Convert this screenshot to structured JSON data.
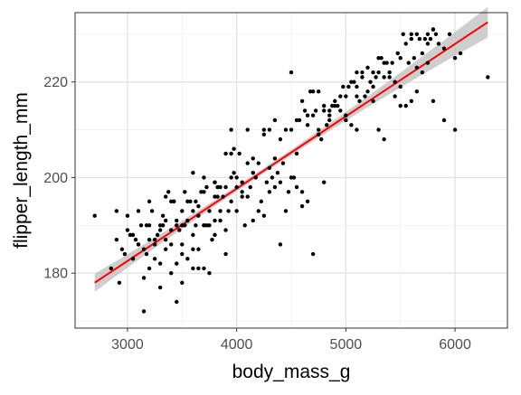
{
  "chart_data": {
    "type": "scatter",
    "title": "",
    "xlabel": "body_mass_g",
    "ylabel": "flipper_length_mm",
    "xlim": [
      2520,
      6480
    ],
    "ylim": [
      168.5,
      234.5
    ],
    "x_ticks": [
      3000,
      4000,
      5000,
      6000
    ],
    "x_tick_labels": [
      "3000",
      "4000",
      "5000",
      "6000"
    ],
    "y_ticks": [
      180,
      200,
      220
    ],
    "y_tick_labels": [
      "180",
      "200",
      "220"
    ],
    "grid": true,
    "theme": "bw",
    "point_color": "#000000",
    "fit": {
      "method": "lm",
      "color": "#ff0000",
      "ribbon_color": "#bdbdbd",
      "x_range": [
        2700,
        6300
      ],
      "y_range": [
        178.0,
        232.5
      ]
    },
    "points": {
      "x": [
        2700,
        2850,
        2900,
        2900,
        2925,
        2950,
        3000,
        3000,
        3050,
        3075,
        3100,
        3150,
        3175,
        3200,
        3250,
        3200,
        3300,
        3325,
        3350,
        3400,
        3425,
        3450,
        3500,
        3525,
        3550,
        3600,
        3625,
        3650,
        3700,
        3725,
        3750,
        3800,
        3825,
        3850,
        3900,
        3950,
        3975,
        4000,
        4050,
        4100,
        4150,
        4200,
        4250,
        4300,
        4350,
        4400,
        4450,
        4500,
        4550,
        4600,
        4650,
        4700,
        4750,
        4800,
        4850,
        4900,
        4950,
        5000,
        5050,
        5100,
        5150,
        5200,
        5250,
        5300,
        5350,
        5400,
        5450,
        5500,
        5550,
        5600,
        5650,
        5700,
        5750,
        5800,
        5850,
        5900,
        5950,
        6000,
        6050,
        6300,
        3100,
        3150,
        3175,
        3200,
        3250,
        3300,
        3350,
        3400,
        3450,
        3500,
        3550,
        3600,
        3650,
        3700,
        3750,
        3800,
        3850,
        3900,
        3950,
        4000,
        4050,
        4100,
        4150,
        4200,
        4250,
        4300,
        4350,
        4400,
        4450,
        4500,
        4550,
        4600,
        4650,
        4700,
        4750,
        4800,
        4850,
        4900,
        4950,
        5000,
        5050,
        5100,
        5150,
        5200,
        5250,
        5300,
        5350,
        5400,
        5450,
        5500,
        5550,
        5600,
        5650,
        5700,
        5750,
        5800,
        2975,
        3025,
        3125,
        3225,
        3275,
        3325,
        3375,
        3425,
        3475,
        3525,
        3575,
        3625,
        3675,
        3725,
        3775,
        3825,
        3875,
        3925,
        3975,
        4025,
        4075,
        4125,
        4175,
        4225,
        4275,
        4325,
        4375,
        4425,
        4475,
        4525,
        4575,
        4625,
        4675,
        4725,
        4775,
        4825,
        4875,
        4925,
        4975,
        5025,
        5075,
        5125,
        5175,
        5225,
        5275,
        5325,
        5375,
        5425,
        5475,
        5525,
        5575,
        5625,
        5675,
        5725,
        5775,
        5825,
        3150,
        3300,
        3450,
        3600,
        3750,
        3900,
        4050,
        3400,
        3500,
        3700,
        3800,
        3550,
        3650,
        3350,
        3450,
        3950,
        4400,
        4700,
        4800,
        5100,
        5350,
        5650,
        5900,
        6000,
        4300,
        4600,
        4650,
        3250,
        3350,
        3500,
        3600,
        3700,
        3800,
        4000,
        4150,
        3050,
        3300,
        3600,
        3800,
        3900,
        4250,
        4500,
        4750,
        5000,
        5250,
        5500,
        5750,
        3100,
        3200,
        3400,
        3500,
        3650,
        3700,
        3850,
        3950,
        4100,
        4350,
        4550,
        4850,
        5100,
        5300,
        5600,
        5800
      ],
      "y": [
        192,
        181,
        187,
        193,
        178,
        185,
        189,
        192,
        183,
        187,
        186,
        172,
        190,
        195,
        187,
        181,
        190,
        192,
        191,
        186,
        195,
        190,
        190,
        197,
        195,
        193,
        195,
        192,
        197,
        190,
        193,
        199,
        196,
        193,
        198,
        210,
        206,
        200,
        199,
        210,
        204,
        203,
        209,
        210,
        212,
        208,
        210,
        210,
        205,
        216,
        211,
        218,
        210,
        214,
        214,
        215,
        217,
        217,
        220,
        219,
        222,
        218,
        222,
        225,
        224,
        221,
        220,
        225,
        228,
        229,
        230,
        226,
        230,
        231,
        228,
        227,
        230,
        225,
        226,
        221,
        186,
        185,
        184,
        190,
        186,
        182,
        196,
        195,
        191,
        193,
        191,
        185,
        181,
        181,
        190,
        196,
        191,
        189,
        195,
        198,
        197,
        196,
        201,
        193,
        192,
        197,
        198,
        199,
        193,
        200,
        198,
        194,
        195,
        213,
        209,
        215,
        212,
        216,
        214,
        213,
        211,
        217,
        221,
        223,
        219,
        210,
        221,
        222,
        217,
        219,
        215,
        216,
        218,
        222,
        224,
        216,
        184,
        188,
        190,
        193,
        188,
        190,
        197,
        195,
        189,
        190,
        195,
        190,
        197,
        198,
        187,
        198,
        196,
        193,
        201,
        205,
        190,
        198,
        200,
        195,
        199,
        200,
        201,
        203,
        197,
        200,
        212,
        214,
        218,
        214,
        208,
        211,
        215,
        215,
        219,
        219,
        220,
        216,
        217,
        220,
        221,
        225,
        224,
        224,
        226,
        230,
        224,
        225,
        229,
        229,
        229,
        230,
        179,
        177,
        174,
        181,
        180,
        184,
        196,
        180,
        178,
        190,
        188,
        183,
        185,
        187,
        182,
        200,
        186,
        184,
        199,
        210,
        208,
        223,
        212,
        210,
        202,
        197,
        213,
        183,
        185,
        184,
        188,
        190,
        191,
        193,
        191,
        188,
        189,
        201,
        199,
        205,
        210,
        222,
        218,
        212,
        216,
        215,
        228,
        193,
        187,
        189,
        186,
        194,
        200,
        198,
        205,
        203,
        204,
        212,
        213,
        222,
        222,
        230,
        231
      ]
    }
  }
}
